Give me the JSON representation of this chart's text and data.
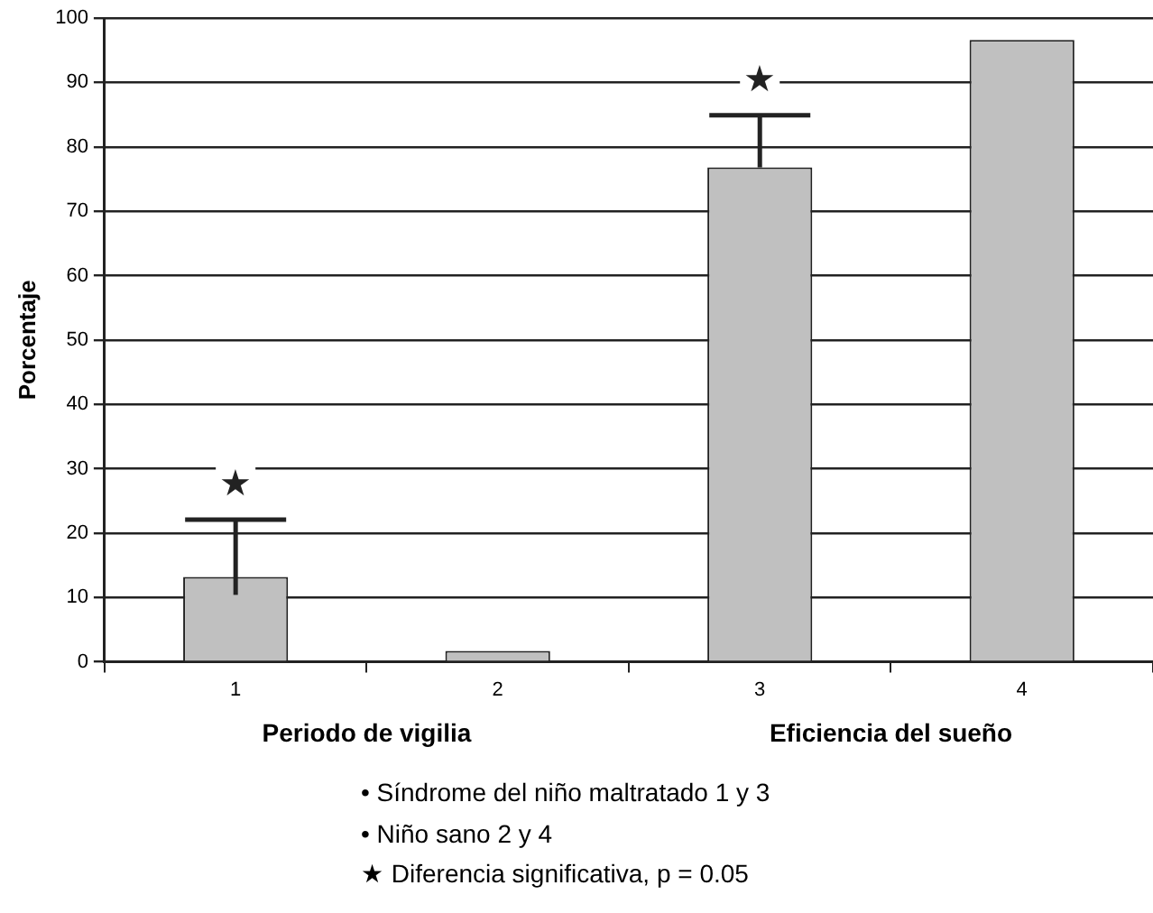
{
  "chart_data": {
    "type": "bar",
    "ylabel": "Porcentaje",
    "categories": [
      "1",
      "2",
      "3",
      "4"
    ],
    "values": [
      13.2,
      1.7,
      76.8,
      96.6
    ],
    "errors": [
      [
        10.4,
        22.1
      ],
      null,
      [
        76.8,
        84.9
      ],
      null
    ],
    "color": "#c0c0c0",
    "ylim": [
      0,
      100
    ],
    "yticks": [
      0,
      10,
      20,
      30,
      40,
      50,
      60,
      70,
      80,
      90,
      100
    ],
    "grid": "y",
    "legend": false,
    "annotations": [
      "★",
      "★",
      "Periodo de vigilia",
      "Eficiencia del sueño",
      "•  Síndrome del niño maltratado 1 y 3",
      "•  Niño sano 2 y 4",
      "★  Diferencia significativa, p = 0.05"
    ]
  }
}
